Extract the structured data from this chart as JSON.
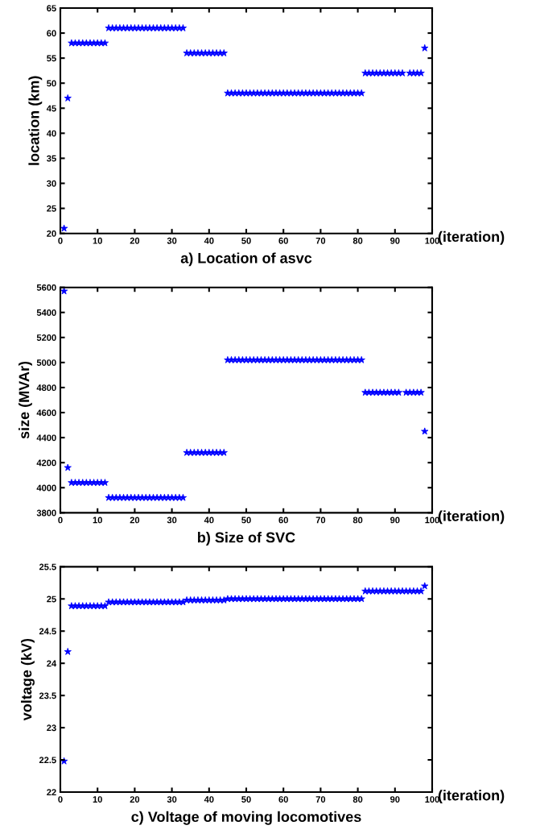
{
  "chart_data": [
    {
      "type": "scatter",
      "title": "a) Location of asvc",
      "xlabel": "(iteration)",
      "ylabel": "location (km)",
      "marker": "star",
      "grid": false,
      "legend": false,
      "xlim": [
        0,
        100
      ],
      "xticks": [
        0,
        10,
        20,
        30,
        40,
        50,
        60,
        70,
        80,
        90,
        100
      ],
      "ylim": [
        20,
        65
      ],
      "yticks": [
        20,
        25,
        30,
        35,
        40,
        45,
        50,
        55,
        60,
        65
      ],
      "series": [
        {
          "color": "#0000ff",
          "x": [
            1,
            2,
            3,
            4,
            5,
            6,
            7,
            8,
            9,
            10,
            11,
            12,
            13,
            14,
            15,
            16,
            17,
            18,
            19,
            20,
            21,
            22,
            23,
            24,
            25,
            26,
            27,
            28,
            29,
            30,
            31,
            32,
            33,
            34,
            35,
            36,
            37,
            38,
            39,
            40,
            41,
            42,
            43,
            44,
            45,
            46,
            47,
            48,
            49,
            50,
            51,
            52,
            53,
            54,
            55,
            56,
            57,
            58,
            59,
            60,
            61,
            62,
            63,
            64,
            65,
            66,
            67,
            68,
            69,
            70,
            71,
            72,
            73,
            74,
            75,
            76,
            77,
            78,
            79,
            80,
            81,
            82,
            83,
            84,
            85,
            86,
            87,
            88,
            89,
            90,
            91,
            92,
            94,
            95,
            96,
            97,
            98
          ],
          "values": [
            21,
            47,
            58,
            58,
            58,
            58,
            58,
            58,
            58,
            58,
            58,
            58,
            61,
            61,
            61,
            61,
            61,
            61,
            61,
            61,
            61,
            61,
            61,
            61,
            61,
            61,
            61,
            61,
            61,
            61,
            61,
            61,
            61,
            56,
            56,
            56,
            56,
            56,
            56,
            56,
            56,
            56,
            56,
            56,
            48,
            48,
            48,
            48,
            48,
            48,
            48,
            48,
            48,
            48,
            48,
            48,
            48,
            48,
            48,
            48,
            48,
            48,
            48,
            48,
            48,
            48,
            48,
            48,
            48,
            48,
            48,
            48,
            48,
            48,
            48,
            48,
            48,
            48,
            48,
            48,
            48,
            52,
            52,
            52,
            52,
            52,
            52,
            52,
            52,
            52,
            52,
            52,
            52,
            52,
            52,
            52,
            57
          ]
        }
      ]
    },
    {
      "type": "scatter",
      "title": "b) Size of SVC",
      "xlabel": "(iteration)",
      "ylabel": "size (MVAr)",
      "marker": "star",
      "grid": false,
      "legend": false,
      "xlim": [
        0,
        100
      ],
      "xticks": [
        0,
        10,
        20,
        30,
        40,
        50,
        60,
        70,
        80,
        90,
        100
      ],
      "ylim": [
        3800,
        5600
      ],
      "yticks": [
        3800,
        4000,
        4200,
        4400,
        4600,
        4800,
        5000,
        5200,
        5400,
        5600
      ],
      "series": [
        {
          "color": "#0000ff",
          "x": [
            1,
            2,
            3,
            4,
            5,
            6,
            7,
            8,
            9,
            10,
            11,
            12,
            13,
            14,
            15,
            16,
            17,
            18,
            19,
            20,
            21,
            22,
            23,
            24,
            25,
            26,
            27,
            28,
            29,
            30,
            31,
            32,
            33,
            34,
            35,
            36,
            37,
            38,
            39,
            40,
            41,
            42,
            43,
            44,
            45,
            46,
            47,
            48,
            49,
            50,
            51,
            52,
            53,
            54,
            55,
            56,
            57,
            58,
            59,
            60,
            61,
            62,
            63,
            64,
            65,
            66,
            67,
            68,
            69,
            70,
            71,
            72,
            73,
            74,
            75,
            76,
            77,
            78,
            79,
            80,
            81,
            82,
            83,
            84,
            85,
            86,
            87,
            88,
            89,
            90,
            91,
            93,
            94,
            95,
            96,
            97,
            98
          ],
          "values": [
            5570,
            4160,
            4040,
            4040,
            4040,
            4040,
            4040,
            4040,
            4040,
            4040,
            4040,
            4040,
            3920,
            3920,
            3920,
            3920,
            3920,
            3920,
            3920,
            3920,
            3920,
            3920,
            3920,
            3920,
            3920,
            3920,
            3920,
            3920,
            3920,
            3920,
            3920,
            3920,
            3920,
            4280,
            4280,
            4280,
            4280,
            4280,
            4280,
            4280,
            4280,
            4280,
            4280,
            4280,
            5020,
            5020,
            5020,
            5020,
            5020,
            5020,
            5020,
            5020,
            5020,
            5020,
            5020,
            5020,
            5020,
            5020,
            5020,
            5020,
            5020,
            5020,
            5020,
            5020,
            5020,
            5020,
            5020,
            5020,
            5020,
            5020,
            5020,
            5020,
            5020,
            5020,
            5020,
            5020,
            5020,
            5020,
            5020,
            5020,
            5020,
            4760,
            4760,
            4760,
            4760,
            4760,
            4760,
            4760,
            4760,
            4760,
            4760,
            4760,
            4760,
            4760,
            4760,
            4760,
            4450
          ]
        }
      ]
    },
    {
      "type": "scatter",
      "title": "c) Voltage of moving locomotives",
      "xlabel": "(iteration)",
      "ylabel": "voltage (kV)",
      "marker": "star",
      "grid": false,
      "legend": false,
      "xlim": [
        0,
        100
      ],
      "xticks": [
        0,
        10,
        20,
        30,
        40,
        50,
        60,
        70,
        80,
        90,
        100
      ],
      "ylim": [
        22,
        25.5
      ],
      "yticks": [
        22,
        22.5,
        23,
        23.5,
        24,
        24.5,
        25,
        25.5
      ],
      "series": [
        {
          "color": "#0000ff",
          "x": [
            1,
            2,
            3,
            4,
            5,
            6,
            7,
            8,
            9,
            10,
            11,
            12,
            13,
            14,
            15,
            16,
            17,
            18,
            19,
            20,
            21,
            22,
            23,
            24,
            25,
            26,
            27,
            28,
            29,
            30,
            31,
            32,
            33,
            34,
            35,
            36,
            37,
            38,
            39,
            40,
            41,
            42,
            43,
            44,
            45,
            46,
            47,
            48,
            49,
            50,
            51,
            52,
            53,
            54,
            55,
            56,
            57,
            58,
            59,
            60,
            61,
            62,
            63,
            64,
            65,
            66,
            67,
            68,
            69,
            70,
            71,
            72,
            73,
            74,
            75,
            76,
            77,
            78,
            79,
            80,
            81,
            82,
            83,
            84,
            85,
            86,
            87,
            88,
            89,
            90,
            91,
            92,
            93,
            94,
            95,
            96,
            97,
            98
          ],
          "values": [
            22.48,
            24.18,
            24.89,
            24.89,
            24.89,
            24.89,
            24.89,
            24.89,
            24.89,
            24.89,
            24.89,
            24.89,
            24.95,
            24.95,
            24.95,
            24.95,
            24.95,
            24.95,
            24.95,
            24.95,
            24.95,
            24.95,
            24.95,
            24.95,
            24.95,
            24.95,
            24.95,
            24.95,
            24.95,
            24.95,
            24.95,
            24.95,
            24.95,
            24.98,
            24.98,
            24.98,
            24.98,
            24.98,
            24.98,
            24.98,
            24.98,
            24.98,
            24.98,
            24.98,
            25.0,
            25.0,
            25.0,
            25.0,
            25.0,
            25.0,
            25.0,
            25.0,
            25.0,
            25.0,
            25.0,
            25.0,
            25.0,
            25.0,
            25.0,
            25.0,
            25.0,
            25.0,
            25.0,
            25.0,
            25.0,
            25.0,
            25.0,
            25.0,
            25.0,
            25.0,
            25.0,
            25.0,
            25.0,
            25.0,
            25.0,
            25.0,
            25.0,
            25.0,
            25.0,
            25.0,
            25.0,
            25.12,
            25.12,
            25.12,
            25.12,
            25.12,
            25.12,
            25.12,
            25.12,
            25.12,
            25.12,
            25.12,
            25.12,
            25.12,
            25.12,
            25.12,
            25.12,
            25.2
          ]
        }
      ]
    }
  ]
}
